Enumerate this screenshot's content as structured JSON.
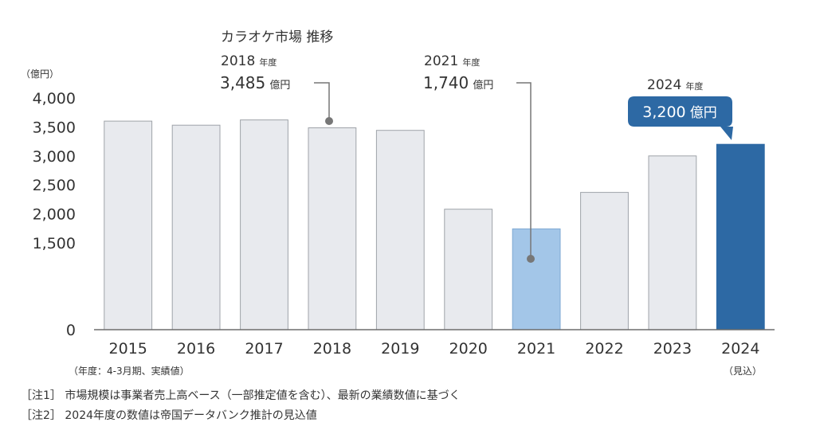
{
  "chart_data": {
    "type": "bar",
    "title": "カラオケ市場 推移",
    "y_unit": "（億円）",
    "x_unit": "（年度：4-3月期、実績値）",
    "ylim": [
      0,
      4000
    ],
    "y_ticks": [
      "4,000",
      "3,500",
      "3,000",
      "2,500",
      "2,000",
      "1,500",
      "0"
    ],
    "grid": false,
    "categories": [
      "2015",
      "2016",
      "2017",
      "2018",
      "2019",
      "2020",
      "2021",
      "2022",
      "2023",
      "2024"
    ],
    "values": [
      3600,
      3530,
      3620,
      3485,
      3440,
      2080,
      1740,
      2370,
      3000,
      3200
    ],
    "category_sublabels": {
      "2024": "（見込）"
    },
    "colors": {
      "default": "#e8eaee",
      "highlight_2021": "#a3c6e8",
      "forecast_2024": "#2d69a4",
      "bar_border": "#9fa3a9",
      "axis": "#6d6d6d"
    },
    "annotations": [
      {
        "category": "2018",
        "year": "2018",
        "year_suffix": "年度",
        "value_text": "3,485",
        "value_unit": "億円"
      },
      {
        "category": "2021",
        "year": "2021",
        "year_suffix": "年度",
        "value_text": "1,740",
        "value_unit": "億円"
      },
      {
        "category": "2024",
        "year": "2024",
        "year_suffix": "年度",
        "value_text": "3,200",
        "value_unit": "億円",
        "style": "badge"
      }
    ]
  },
  "notes": [
    {
      "label": "［注1］",
      "text": "市場規模は事業者売上高ベース（一部推定値を含む）、最新の業績数値に基づく"
    },
    {
      "label": "［注2］",
      "text": "2024年度の数値は帝国データバンク推計の見込値"
    }
  ]
}
